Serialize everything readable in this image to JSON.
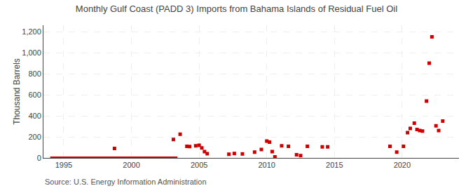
{
  "chart_data": {
    "type": "scatter",
    "title": "Monthly Gulf Coast (PADD 3) Imports from Bahama Islands of Residual Fuel Oil",
    "ylabel": "Thousand Barrels",
    "annotations": [
      "Source: U.S. Energy Information Administration"
    ],
    "xlim": [
      1993.5,
      2024.2
    ],
    "ylim": [
      0,
      1260
    ],
    "xticks": [
      1995,
      2000,
      2005,
      2010,
      2015,
      2020
    ],
    "yticks": [
      0,
      200,
      400,
      600,
      800,
      {
        "value": 1000,
        "label": "1,000"
      },
      {
        "value": 1200,
        "label": "1,200"
      }
    ],
    "grid": true,
    "series": [
      {
        "type": "scatter",
        "color": "#cc0000",
        "marker": "square",
        "x": [
          1998.75,
          2003.1,
          2003.6,
          2004.1,
          2004.3,
          2004.75,
          2005.0,
          2005.2,
          2005.4,
          2005.6,
          2007.2,
          2007.6,
          2008.2,
          2009.1,
          2009.6,
          2010.0,
          2010.2,
          2010.4,
          2010.6,
          2011.1,
          2011.6,
          2012.2,
          2012.5,
          2013.0,
          2014.1,
          2014.5,
          2019.1,
          2019.6,
          2020.1,
          2020.4,
          2020.6,
          2020.9,
          2021.1,
          2021.3,
          2021.5,
          2021.8,
          2022.0,
          2022.2,
          2022.5,
          2022.7,
          2023.0
        ],
        "values": [
          90,
          175,
          225,
          110,
          108,
          115,
          120,
          95,
          60,
          40,
          35,
          42,
          38,
          55,
          80,
          160,
          150,
          60,
          10,
          115,
          110,
          30,
          22,
          110,
          105,
          105,
          110,
          55,
          110,
          240,
          280,
          330,
          270,
          260,
          255,
          540,
          900,
          1150,
          305,
          260,
          350
        ]
      },
      {
        "type": "line",
        "color": "#cc0000",
        "line_style": "solid",
        "x": [
          1994.0,
          2003.4
        ],
        "values": [
          0,
          0
        ]
      }
    ]
  }
}
